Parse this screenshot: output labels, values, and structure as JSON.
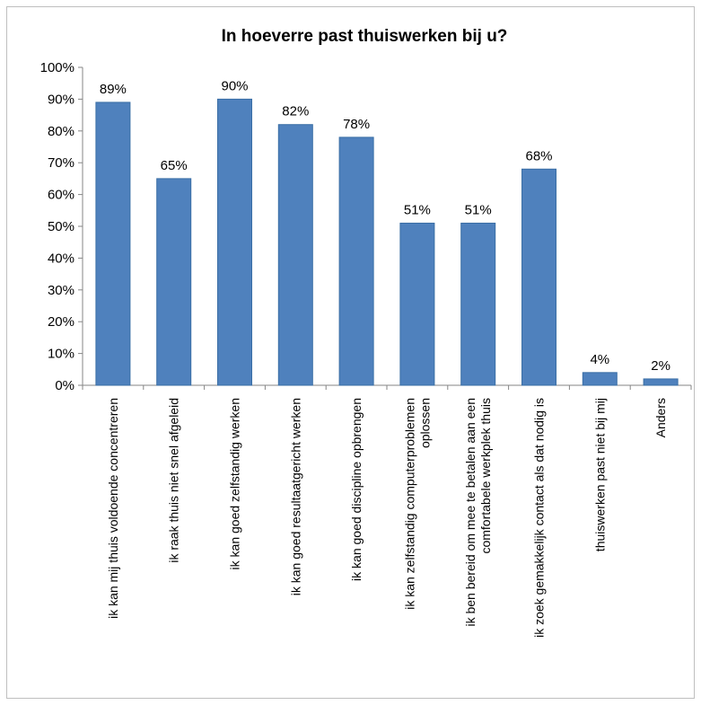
{
  "chart_data": {
    "type": "bar",
    "title": "In hoeverre past thuiswerken bij u?",
    "xlabel": "",
    "ylabel": "",
    "ylim": [
      0,
      100
    ],
    "yticks": [
      "0%",
      "10%",
      "20%",
      "30%",
      "40%",
      "50%",
      "60%",
      "70%",
      "80%",
      "90%",
      "100%"
    ],
    "grid": false,
    "legend": "none",
    "bar_color": "#4f81bd",
    "bar_edge_color": "#3a6ea5",
    "categories": [
      [
        "ik kan mij thuis voldoende concentreren"
      ],
      [
        "ik raak thuis niet snel afgeleid"
      ],
      [
        "ik kan goed zelfstandig werken"
      ],
      [
        "ik kan goed resultaatgericht werken"
      ],
      [
        "ik kan goed discipline opbrengen"
      ],
      [
        "ik kan zelfstandig computerproblemen",
        "oplossen"
      ],
      [
        "ik ben bereid om mee te betalen aan een",
        "comfortabele werkplek thuis"
      ],
      [
        "ik zoek gemakkelijk contact als dat nodig is"
      ],
      [
        "thuiswerken past niet bij mij"
      ],
      [
        "Anders"
      ]
    ],
    "values": [
      89,
      65,
      90,
      82,
      78,
      51,
      51,
      68,
      4,
      2
    ],
    "data_labels": [
      "89%",
      "65%",
      "90%",
      "82%",
      "78%",
      "51%",
      "51%",
      "68%",
      "4%",
      "2%"
    ]
  }
}
